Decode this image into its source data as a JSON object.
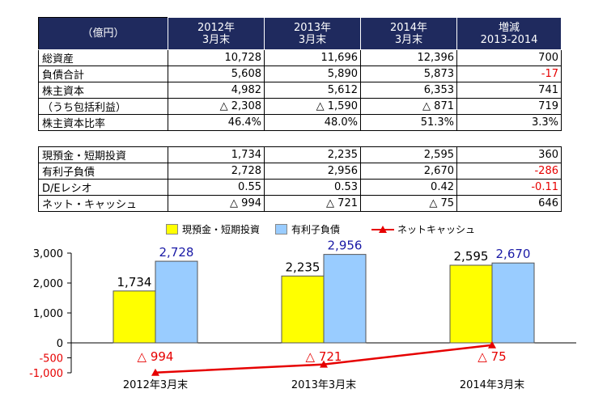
{
  "table1": {
    "headers": [
      "（億円）",
      "2012年\n3月末",
      "2013年\n3月末",
      "2014年\n3月末",
      "増減\n2013-2014"
    ],
    "rows": [
      {
        "label": "総資産",
        "cells": [
          "10,728",
          "11,696",
          "12,396",
          "700"
        ],
        "neg": false
      },
      {
        "label": "負債合計",
        "cells": [
          "5,608",
          "5,890",
          "5,873",
          "-17"
        ],
        "neg": true
      },
      {
        "label": "株主資本",
        "cells": [
          "4,982",
          "5,612",
          "6,353",
          "741"
        ],
        "neg": false
      },
      {
        "label": "（うち包括利益）",
        "cells": [
          "△ 2,308",
          "△ 1,590",
          "△ 871",
          "719"
        ],
        "neg": false
      },
      {
        "label": "株主資本比率",
        "cells": [
          "46.4%",
          "48.0%",
          "51.3%",
          "3.3%"
        ],
        "neg": false
      }
    ]
  },
  "table2": {
    "rows": [
      {
        "label": "現預金・短期投資",
        "cells": [
          "1,734",
          "2,235",
          "2,595",
          "360"
        ],
        "neg": false
      },
      {
        "label": "有利子負債",
        "cells": [
          "2,728",
          "2,956",
          "2,670",
          "-286"
        ],
        "neg": true
      },
      {
        "label": "D/Eレシオ",
        "cells": [
          "0.55",
          "0.53",
          "0.42",
          "-0.11"
        ],
        "neg": true
      },
      {
        "label": "ネット・キャッシュ",
        "cells": [
          "△ 994",
          "△ 721",
          "△ 75",
          "646"
        ],
        "neg": false
      }
    ]
  },
  "chart_data": {
    "type": "bar",
    "categories": [
      "2012年3月末",
      "2013年3月末",
      "2014年3月末"
    ],
    "series": [
      {
        "name": "現預金・短期投資",
        "kind": "bar",
        "values": [
          1734,
          2235,
          2595
        ],
        "labels": [
          "1,734",
          "2,235",
          "2,595"
        ],
        "color": "#ffff00",
        "label_color": "#000000"
      },
      {
        "name": "有利子負債",
        "kind": "bar",
        "values": [
          2728,
          2956,
          2670
        ],
        "labels": [
          "2,728",
          "2,956",
          "2,670"
        ],
        "color": "#99ccff",
        "label_color": "#1a1aa6"
      },
      {
        "name": "ネットキャッシュ",
        "kind": "line",
        "values": [
          -994,
          -721,
          -75
        ],
        "labels": [
          "△ 994",
          "△ 721",
          "△ 75"
        ],
        "color": "#e60000",
        "label_color": "#e60000"
      }
    ],
    "yticks": [
      {
        "value": 3000,
        "label": "3,000",
        "color": "#000000"
      },
      {
        "value": 2000,
        "label": "2,000",
        "color": "#000000"
      },
      {
        "value": 1000,
        "label": "1,000",
        "color": "#000000"
      },
      {
        "value": 0,
        "label": "0",
        "color": "#000000"
      },
      {
        "value": -500,
        "label": "-500",
        "color": "#e60000"
      },
      {
        "value": -1000,
        "label": "-1,000",
        "color": "#e60000"
      }
    ],
    "ylim": [
      -1000,
      3000
    ],
    "legend": "top",
    "grid": false
  }
}
